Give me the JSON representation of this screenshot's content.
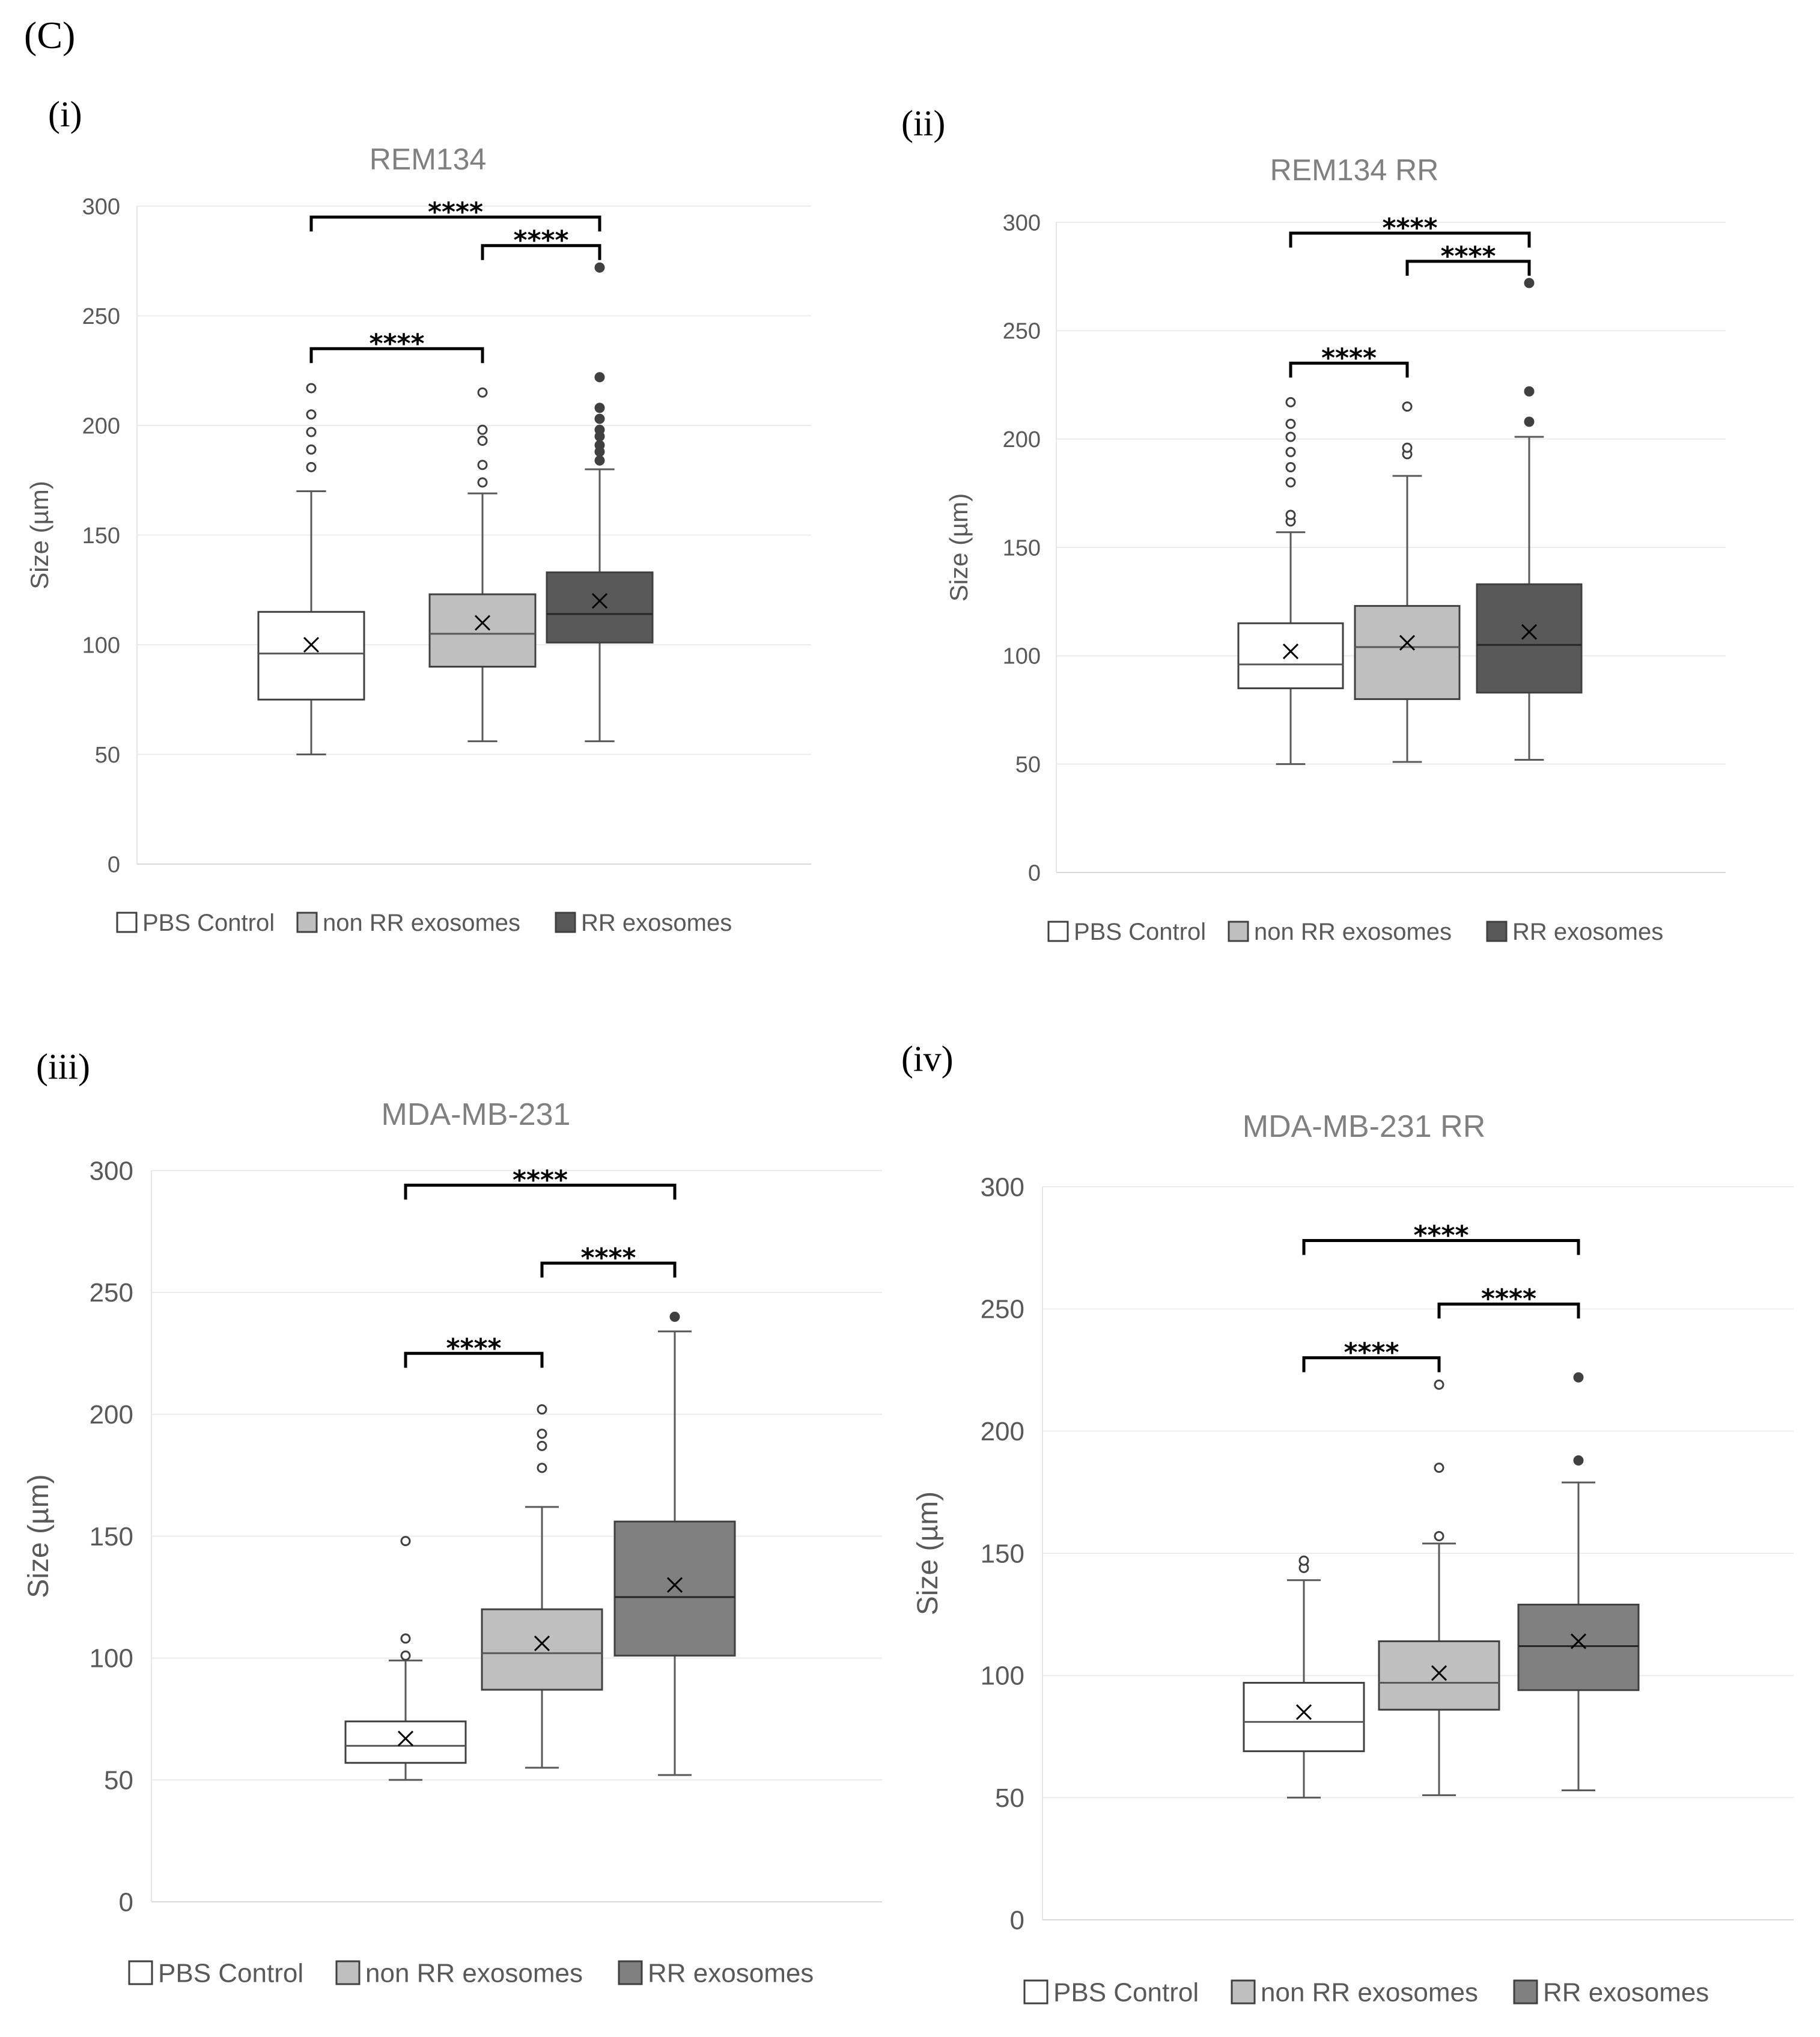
{
  "figure_label": "(C)",
  "legend_labels": [
    "PBS Control",
    "non RR exosomes",
    "RR exosomes"
  ],
  "legend_colors": [
    "#ffffff",
    "#bfbfbf",
    "#595959"
  ],
  "chart_data": [
    {
      "type": "boxplot",
      "panel": "(i)",
      "title": "REM134",
      "ylabel": "Size (µm)",
      "ylim": [
        0,
        300
      ],
      "yticks": [
        0,
        50,
        100,
        150,
        200,
        250,
        300
      ],
      "series": [
        {
          "name": "PBS Control",
          "color": "#ffffff",
          "min": 50,
          "q1": 75,
          "median": 96,
          "q3": 115,
          "max": 170,
          "mean": 100,
          "outliers": [
            181,
            189,
            197,
            205,
            217
          ]
        },
        {
          "name": "non RR exosomes",
          "color": "#bfbfbf",
          "min": 56,
          "q1": 90,
          "median": 105,
          "q3": 123,
          "max": 169,
          "mean": 110,
          "outliers": [
            174,
            182,
            193,
            198,
            215
          ]
        },
        {
          "name": "RR exosomes",
          "color": "#595959",
          "min": 56,
          "q1": 101,
          "median": 114,
          "q3": 133,
          "max": 180,
          "mean": 120,
          "outliers": [
            184,
            188,
            191,
            195,
            198,
            203,
            208,
            222,
            272
          ]
        }
      ],
      "significance": [
        {
          "from": 0,
          "to": 1,
          "y": 235,
          "label": "****"
        },
        {
          "from": 0,
          "to": 2,
          "y": 295,
          "label": "****"
        },
        {
          "from": 1,
          "to": 2,
          "y": 282,
          "label": "****"
        }
      ]
    },
    {
      "type": "boxplot",
      "panel": "(ii)",
      "title": "REM134 RR",
      "ylabel": "Size (µm)",
      "ylim": [
        0,
        300
      ],
      "yticks": [
        0,
        50,
        100,
        150,
        200,
        250,
        300
      ],
      "series": [
        {
          "name": "PBS Control",
          "color": "#ffffff",
          "min": 50,
          "q1": 85,
          "median": 96,
          "q3": 115,
          "max": 157,
          "mean": 102,
          "outliers": [
            162,
            165,
            180,
            187,
            194,
            201,
            207,
            217
          ]
        },
        {
          "name": "non RR exosomes",
          "color": "#bfbfbf",
          "min": 51,
          "q1": 80,
          "median": 104,
          "q3": 123,
          "max": 183,
          "mean": 106,
          "outliers": [
            193,
            196,
            215
          ]
        },
        {
          "name": "RR exosomes",
          "color": "#595959",
          "min": 52,
          "q1": 83,
          "median": 105,
          "q3": 133,
          "max": 201,
          "mean": 111,
          "outliers": [
            208,
            222,
            272
          ]
        }
      ],
      "significance": [
        {
          "from": 0,
          "to": 1,
          "y": 235,
          "label": "****"
        },
        {
          "from": 0,
          "to": 2,
          "y": 295,
          "label": "****"
        },
        {
          "from": 1,
          "to": 2,
          "y": 282,
          "label": "****"
        }
      ]
    },
    {
      "type": "boxplot",
      "panel": "(iii)",
      "title": "MDA-MB-231",
      "ylabel": "Size (µm)",
      "ylim": [
        0,
        300
      ],
      "yticks": [
        0,
        50,
        100,
        150,
        200,
        250,
        300
      ],
      "series": [
        {
          "name": "PBS Control",
          "color": "#ffffff",
          "min": 50,
          "q1": 57,
          "median": 64,
          "q3": 74,
          "max": 99,
          "mean": 67,
          "outliers": [
            101,
            108,
            148
          ]
        },
        {
          "name": "non RR exosomes",
          "color": "#bfbfbf",
          "min": 55,
          "q1": 87,
          "median": 102,
          "q3": 120,
          "max": 162,
          "mean": 106,
          "outliers": [
            178,
            187,
            192,
            202
          ]
        },
        {
          "name": "RR exosomes",
          "color": "#808080",
          "min": 52,
          "q1": 101,
          "median": 125,
          "q3": 156,
          "max": 234,
          "mean": 130,
          "outliers": [
            240
          ]
        }
      ],
      "significance": [
        {
          "from": 0,
          "to": 1,
          "y": 225,
          "label": "****"
        },
        {
          "from": 0,
          "to": 2,
          "y": 294,
          "label": "****"
        },
        {
          "from": 1,
          "to": 2,
          "y": 262,
          "label": "****"
        }
      ]
    },
    {
      "type": "boxplot",
      "panel": "(iv)",
      "title": "MDA-MB-231 RR",
      "ylabel": "Size (µm)",
      "ylim": [
        0,
        300
      ],
      "yticks": [
        0,
        50,
        100,
        150,
        200,
        250,
        300
      ],
      "series": [
        {
          "name": "PBS Control",
          "color": "#ffffff",
          "min": 50,
          "q1": 69,
          "median": 81,
          "q3": 97,
          "max": 139,
          "mean": 85,
          "outliers": [
            144,
            147
          ]
        },
        {
          "name": "non RR exosomes",
          "color": "#bfbfbf",
          "min": 51,
          "q1": 86,
          "median": 97,
          "q3": 114,
          "max": 154,
          "mean": 101,
          "outliers": [
            157,
            185,
            219
          ]
        },
        {
          "name": "RR exosomes",
          "color": "#808080",
          "min": 53,
          "q1": 94,
          "median": 112,
          "q3": 129,
          "max": 179,
          "mean": 114,
          "outliers": [
            188,
            222
          ]
        }
      ],
      "significance": [
        {
          "from": 0,
          "to": 1,
          "y": 230,
          "label": "****"
        },
        {
          "from": 0,
          "to": 2,
          "y": 278,
          "label": "****"
        },
        {
          "from": 1,
          "to": 2,
          "y": 252,
          "label": "****"
        }
      ]
    }
  ]
}
